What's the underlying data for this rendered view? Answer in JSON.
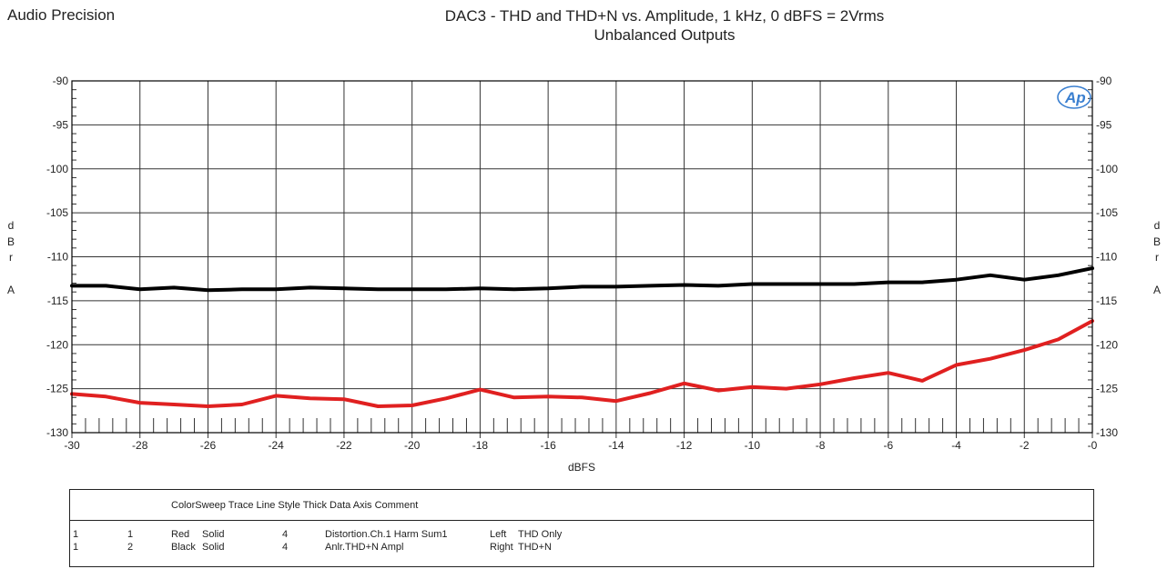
{
  "header": {
    "brand": "Audio Precision",
    "title_line1": "DAC3 - THD and THD+N vs. Amplitude, 1 kHz, 0 dBFS = 2Vrms",
    "title_line2": "Unbalanced Outputs"
  },
  "logo_text": "Ap",
  "chart_data": {
    "type": "line",
    "xlabel": "dBFS",
    "ylabel_left": "dBr A",
    "ylabel_right": "dBr A",
    "xlim": [
      -30,
      0
    ],
    "ylim": [
      -130,
      -90
    ],
    "x_ticks": [
      -30,
      -28,
      -26,
      -24,
      -22,
      -20,
      -18,
      -16,
      -14,
      -12,
      -10,
      -8,
      -6,
      -4,
      -2,
      0
    ],
    "x_tick_labels": [
      "-30",
      "-28",
      "-26",
      "-24",
      "-22",
      "-20",
      "-18",
      "-16",
      "-14",
      "-12",
      "-10",
      "-8",
      "-6",
      "-4",
      "-2",
      "-0"
    ],
    "y_ticks": [
      -90,
      -95,
      -100,
      -105,
      -110,
      -115,
      -120,
      -125,
      -130
    ],
    "grid": true,
    "series": [
      {
        "color": "#e02020",
        "x": [
          -30,
          -29,
          -28,
          -27,
          -26,
          -25,
          -24,
          -23,
          -22,
          -21,
          -20,
          -19,
          -18,
          -17,
          -16,
          -15,
          -14,
          -13,
          -12,
          -11,
          -10,
          -9,
          -8,
          -7,
          -6,
          -5,
          -4,
          -3,
          -2,
          -1,
          0
        ],
        "values": [
          -125.6,
          -125.9,
          -126.6,
          -126.8,
          -127.0,
          -126.8,
          -125.8,
          -126.1,
          -126.2,
          -127.0,
          -126.9,
          -126.1,
          -125.1,
          -126.0,
          -125.9,
          -126.0,
          -126.4,
          -125.5,
          -124.4,
          -125.2,
          -124.8,
          -125.0,
          -124.5,
          -123.8,
          -123.2,
          -124.1,
          -122.3,
          -121.6,
          -120.6,
          -119.4,
          -117.3
        ]
      },
      {
        "color": "#000000",
        "x": [
          -30,
          -29,
          -28,
          -27,
          -26,
          -25,
          -24,
          -23,
          -22,
          -21,
          -20,
          -19,
          -18,
          -17,
          -16,
          -15,
          -14,
          -13,
          -12,
          -11,
          -10,
          -9,
          -8,
          -7,
          -6,
          -5,
          -4,
          -3,
          -2,
          -1,
          0
        ],
        "values": [
          -113.3,
          -113.3,
          -113.7,
          -113.5,
          -113.8,
          -113.7,
          -113.7,
          -113.5,
          -113.6,
          -113.7,
          -113.7,
          -113.7,
          -113.6,
          -113.7,
          -113.6,
          -113.4,
          -113.4,
          -113.3,
          -113.2,
          -113.3,
          -113.1,
          -113.1,
          -113.1,
          -113.1,
          -112.9,
          -112.9,
          -112.6,
          -112.1,
          -112.6,
          -112.1,
          -111.3
        ]
      }
    ]
  },
  "legend": {
    "header": "ColorSweep Trace Line Style Thick Data Axis Comment",
    "rows": [
      {
        "sweep": "1",
        "trace": "1",
        "color": "Red",
        "style": "Solid",
        "thick": "4",
        "data": "Distortion.Ch.1 Harm Sum1",
        "axis": "Left",
        "comment": "THD Only"
      },
      {
        "sweep": "1",
        "trace": "2",
        "color": "Black",
        "style": "Solid",
        "thick": "4",
        "data": "Anlr.THD+N Ampl",
        "axis": "Right",
        "comment": "THD+N"
      }
    ]
  }
}
